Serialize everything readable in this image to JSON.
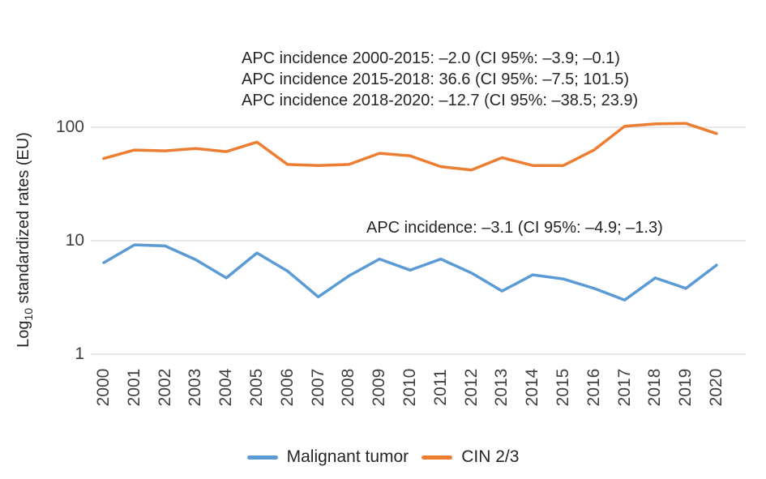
{
  "figure": {
    "background": "#ffffff",
    "gridline_color": "#e7e7e7",
    "annotation_text_color": "#262626",
    "tick_text_color": "#3f3f3f"
  },
  "annotations": {
    "cin_block": {
      "line1": "APC incidence 2000-2015: –2.0 (CI 95%: –3.9; –0.1)",
      "line2": "APC incidence 2015-2018: 36.6 (CI 95%: –7.5; 101.5)",
      "line3": "APC incidence 2018-2020: –12.7 (CI 95%: –38.5; 23.9)"
    },
    "tumor_line": "APC incidence: –3.1 (CI 95%: –4.9; –1.3)"
  },
  "chart_data": {
    "type": "line",
    "title": "",
    "xlabel": "",
    "ylabel": "Log10 standardized rates (EU)",
    "ylabel_parts": {
      "prefix": "Log",
      "sub": "10",
      "suffix": " standardized rates (EU)"
    },
    "yscale": "log10",
    "ylim": [
      1,
      130
    ],
    "grid": "horizontal",
    "legend_position": "bottom-center",
    "categories": [
      "2000",
      "2001",
      "2002",
      "2003",
      "2004",
      "2005",
      "2006",
      "2007",
      "2008",
      "2009",
      "2010",
      "2011",
      "2012",
      "2013",
      "2014",
      "2015",
      "2016",
      "2017",
      "2018",
      "2019",
      "2020"
    ],
    "yticks": [
      {
        "value": 1,
        "label": "1"
      },
      {
        "value": 10,
        "label": "10"
      },
      {
        "value": 100,
        "label": "100"
      }
    ],
    "series": [
      {
        "name": "Malignant tumor",
        "color": "#5B9BD5",
        "values": [
          6.4,
          9.2,
          9.0,
          6.8,
          4.7,
          7.8,
          5.4,
          3.2,
          4.9,
          6.9,
          5.5,
          6.9,
          5.2,
          3.6,
          5.0,
          4.6,
          3.8,
          3.0,
          4.7,
          3.8,
          6.1
        ]
      },
      {
        "name": "CIN 2/3",
        "color": "#ED7D31",
        "values": [
          53,
          63,
          62,
          65,
          61,
          74,
          47,
          46,
          47,
          59,
          56,
          45,
          42,
          54,
          46,
          46,
          63,
          102,
          107,
          108,
          88
        ]
      }
    ]
  }
}
